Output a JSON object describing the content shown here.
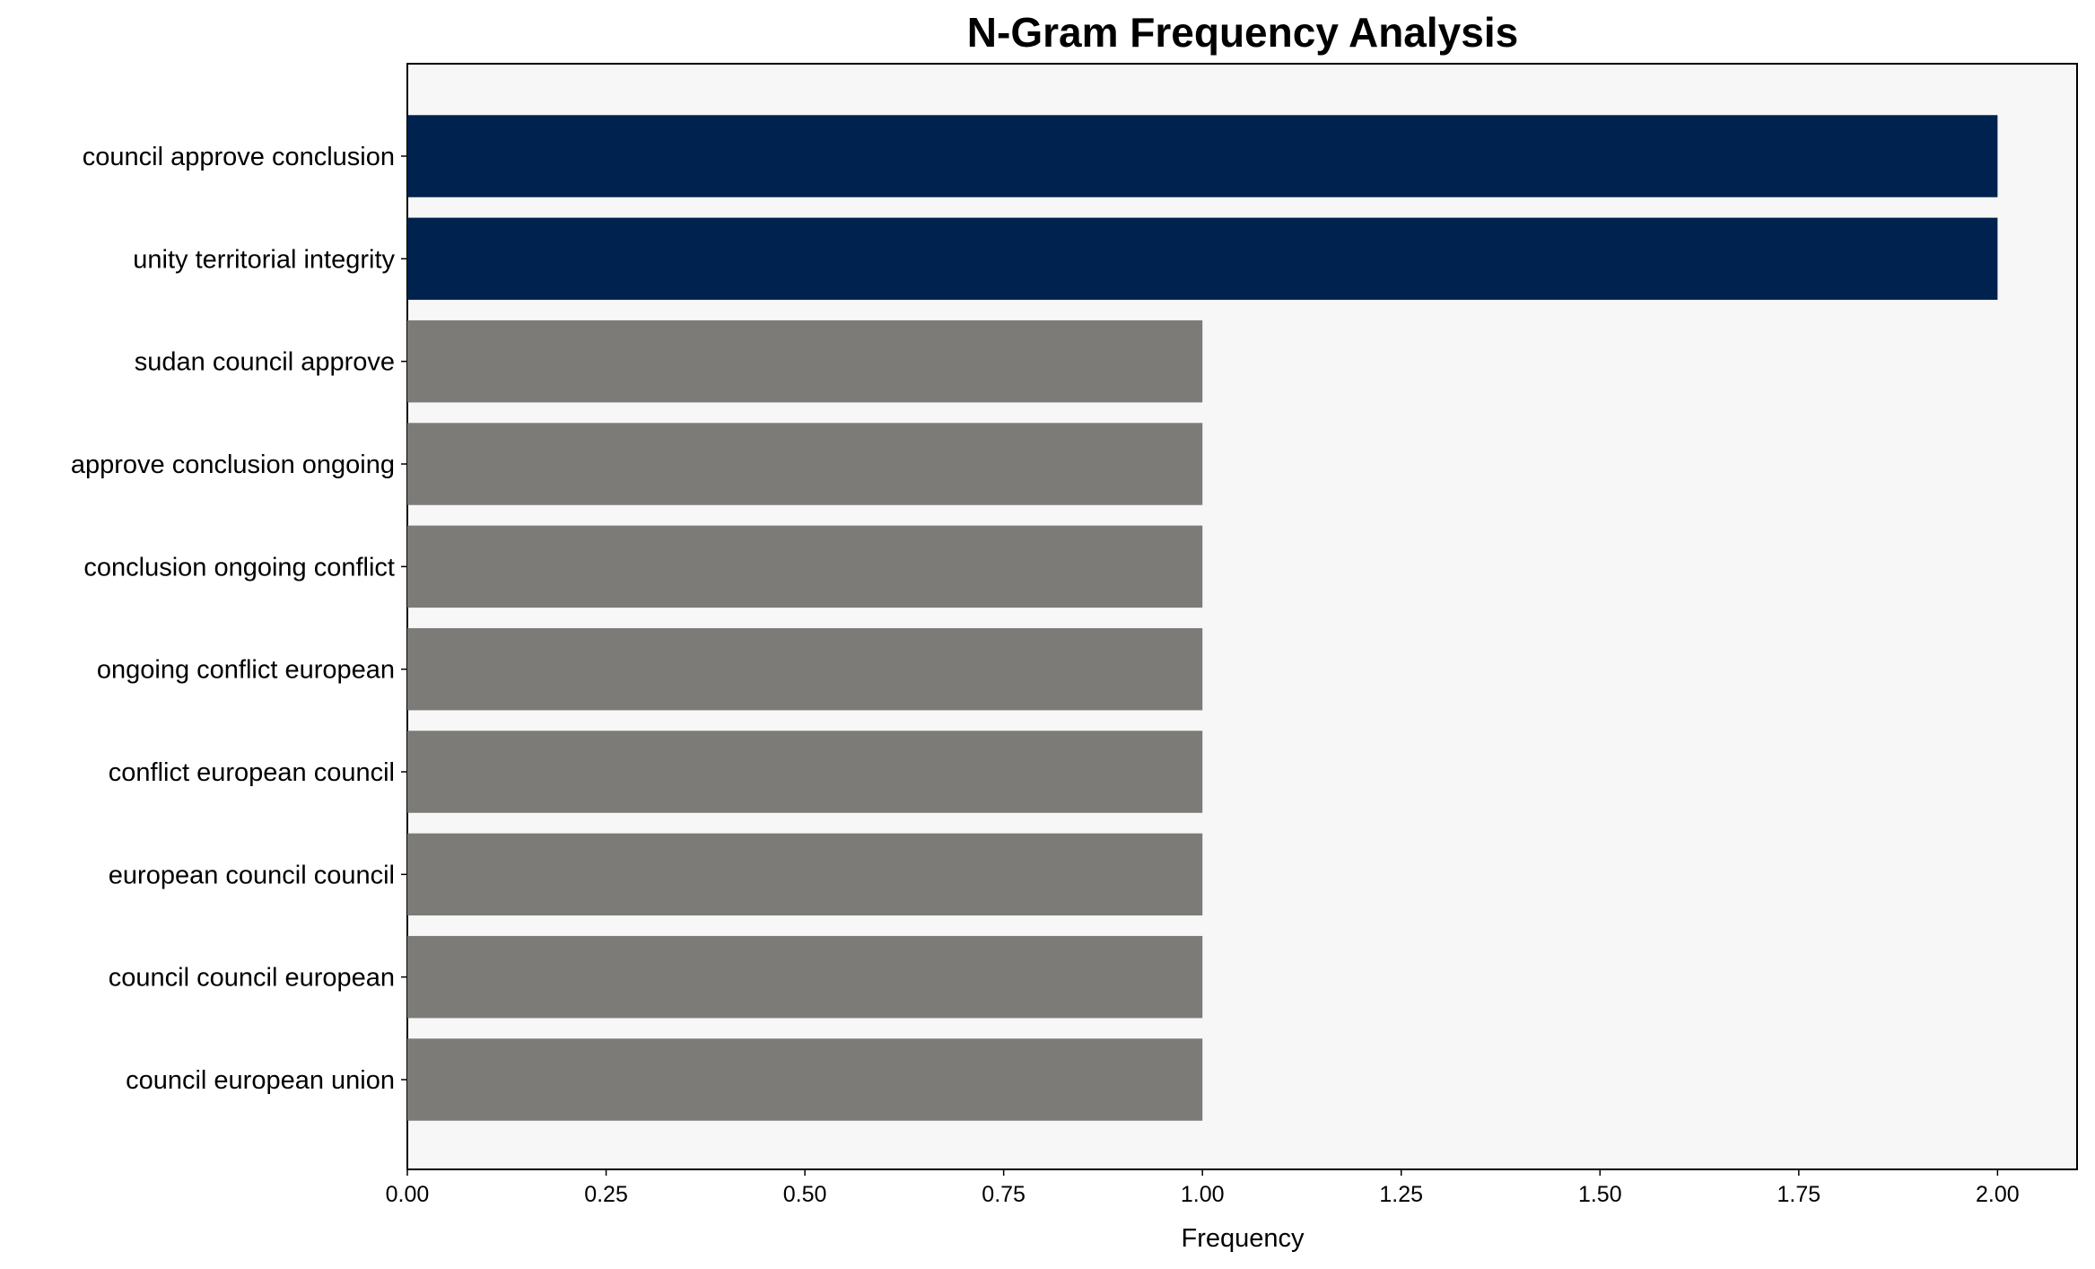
{
  "chart_data": {
    "type": "bar",
    "orientation": "horizontal",
    "title": "N-Gram Frequency Analysis",
    "xlabel": "Frequency",
    "ylabel": "",
    "xlim": [
      0,
      2.1
    ],
    "xticks": [
      "0.00",
      "0.25",
      "0.50",
      "0.75",
      "1.00",
      "1.25",
      "1.50",
      "1.75",
      "2.00"
    ],
    "grid": false,
    "categories": [
      "council approve conclusion",
      "unity territorial integrity",
      "sudan council approve",
      "approve conclusion ongoing",
      "conclusion ongoing conflict",
      "ongoing conflict european",
      "conflict european council",
      "european council council",
      "council council european",
      "council european union"
    ],
    "values": [
      2,
      2,
      1,
      1,
      1,
      1,
      1,
      1,
      1,
      1
    ],
    "colors": {
      "highlight": "#00224e",
      "default": "#7c7b78",
      "axes_background": "#f7f7f7"
    }
  }
}
